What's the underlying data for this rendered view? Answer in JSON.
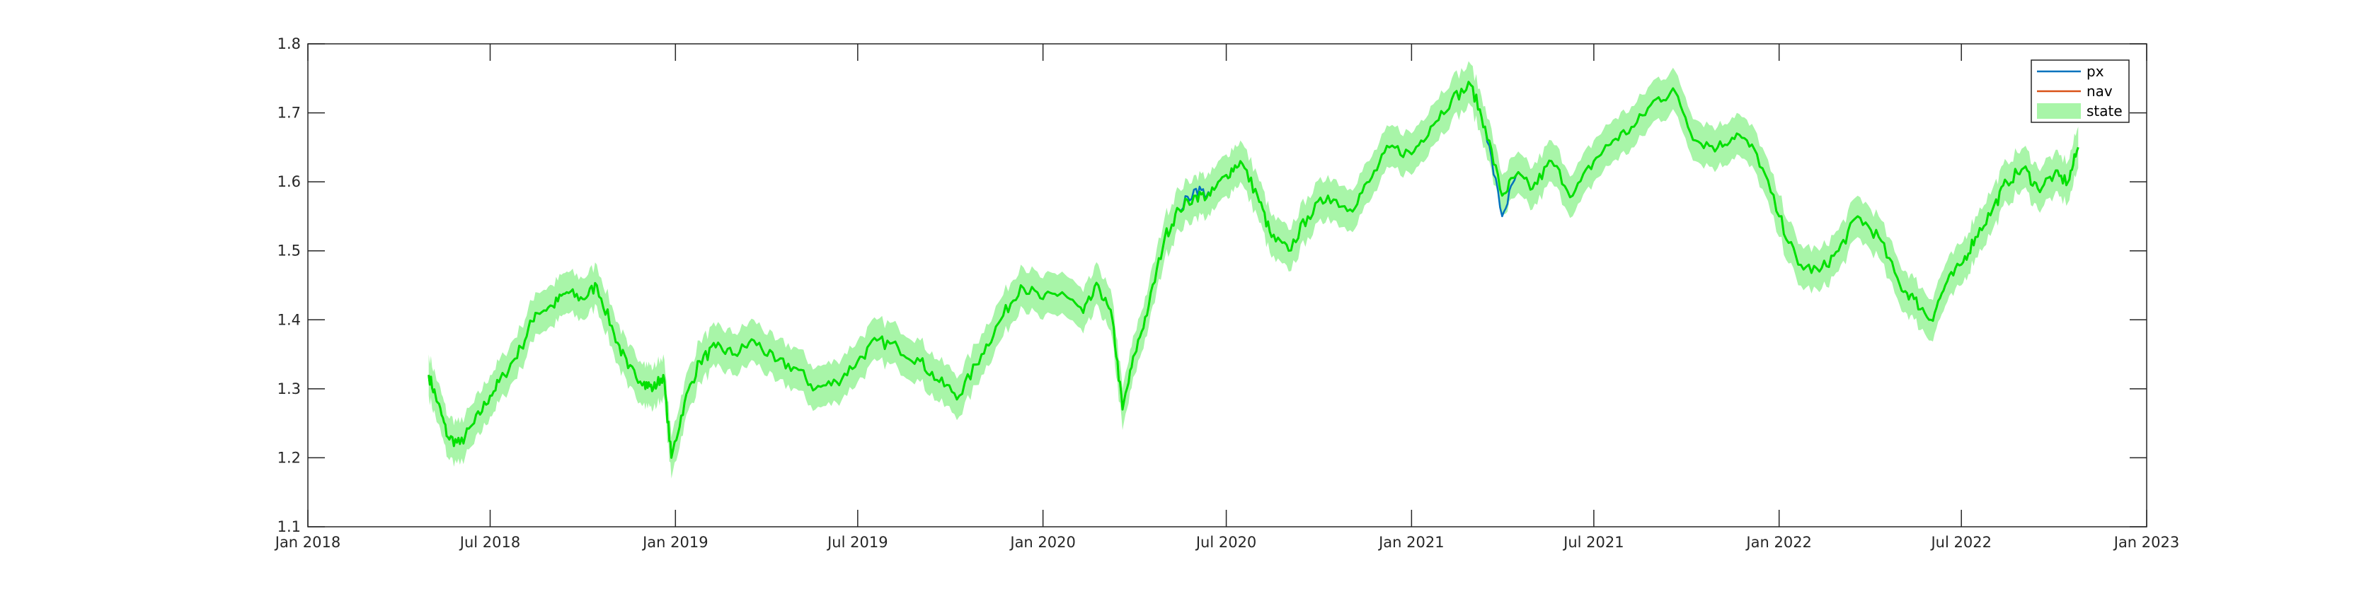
{
  "chart_data": {
    "type": "line",
    "title": "",
    "xlabel": "",
    "ylabel": "",
    "xlim": [
      "2018-01-01",
      "2023-01-01"
    ],
    "ylim": [
      1.1,
      1.8
    ],
    "x_ticks": [
      {
        "date": "2018-01-01",
        "label": "Jan 2018"
      },
      {
        "date": "2018-07-01",
        "label": "Jul 2018"
      },
      {
        "date": "2019-01-01",
        "label": "Jan 2019"
      },
      {
        "date": "2019-07-01",
        "label": "Jul 2019"
      },
      {
        "date": "2020-01-01",
        "label": "Jan 2020"
      },
      {
        "date": "2020-07-01",
        "label": "Jul 2020"
      },
      {
        "date": "2021-01-01",
        "label": "Jan 2021"
      },
      {
        "date": "2021-07-01",
        "label": "Jul 2021"
      },
      {
        "date": "2022-01-01",
        "label": "Jan 2022"
      },
      {
        "date": "2022-07-01",
        "label": "Jul 2022"
      },
      {
        "date": "2023-01-01",
        "label": "Jan 2023"
      }
    ],
    "y_ticks": [
      {
        "value": 1.1,
        "label": "1.1"
      },
      {
        "value": 1.2,
        "label": "1.2"
      },
      {
        "value": 1.3,
        "label": "1.3"
      },
      {
        "value": 1.4,
        "label": "1.4"
      },
      {
        "value": 1.5,
        "label": "1.5"
      },
      {
        "value": 1.6,
        "label": "1.6"
      },
      {
        "value": 1.7,
        "label": "1.7"
      },
      {
        "value": 1.8,
        "label": "1.8"
      }
    ],
    "grid": false,
    "legend_position": "top-right",
    "band_halfwidth": 0.03,
    "x": [
      "2018-05-01",
      "2018-05-10",
      "2018-05-20",
      "2018-06-01",
      "2018-06-15",
      "2018-07-01",
      "2018-07-15",
      "2018-08-01",
      "2018-08-15",
      "2018-09-01",
      "2018-09-15",
      "2018-10-01",
      "2018-10-15",
      "2018-11-01",
      "2018-11-15",
      "2018-12-01",
      "2018-12-10",
      "2018-12-20",
      "2018-12-28",
      "2019-01-10",
      "2019-01-25",
      "2019-02-10",
      "2019-03-01",
      "2019-03-20",
      "2019-04-10",
      "2019-05-01",
      "2019-05-20",
      "2019-06-10",
      "2019-07-01",
      "2019-07-20",
      "2019-08-10",
      "2019-09-01",
      "2019-09-20",
      "2019-10-10",
      "2019-11-01",
      "2019-11-20",
      "2019-12-10",
      "2020-01-01",
      "2020-01-20",
      "2020-02-10",
      "2020-02-25",
      "2020-03-10",
      "2020-03-20",
      "2020-04-01",
      "2020-04-15",
      "2020-05-01",
      "2020-05-15",
      "2020-06-01",
      "2020-06-15",
      "2020-07-01",
      "2020-07-15",
      "2020-08-01",
      "2020-08-15",
      "2020-09-01",
      "2020-09-20",
      "2020-10-10",
      "2020-11-01",
      "2020-11-20",
      "2020-12-10",
      "2021-01-01",
      "2021-01-20",
      "2021-02-10",
      "2021-03-01",
      "2021-03-15",
      "2021-04-01",
      "2021-04-15",
      "2021-05-01",
      "2021-05-20",
      "2021-06-10",
      "2021-07-01",
      "2021-07-20",
      "2021-08-10",
      "2021-09-01",
      "2021-09-20",
      "2021-10-10",
      "2021-11-01",
      "2021-11-20",
      "2021-12-10",
      "2022-01-01",
      "2022-01-20",
      "2022-02-10",
      "2022-03-01",
      "2022-03-20",
      "2022-04-10",
      "2022-05-01",
      "2022-05-15",
      "2022-06-01",
      "2022-06-15",
      "2022-07-01",
      "2022-07-15",
      "2022-08-01",
      "2022-08-15",
      "2022-09-01",
      "2022-09-15",
      "2022-10-01",
      "2022-10-15",
      "2022-10-25"
    ],
    "series": [
      {
        "name": "px",
        "color": "#0072BD",
        "values": [
          1.32,
          1.28,
          1.23,
          1.22,
          1.25,
          1.29,
          1.32,
          1.36,
          1.41,
          1.42,
          1.44,
          1.43,
          1.45,
          1.38,
          1.33,
          1.31,
          1.3,
          1.32,
          1.2,
          1.28,
          1.34,
          1.36,
          1.35,
          1.37,
          1.34,
          1.33,
          1.3,
          1.31,
          1.34,
          1.37,
          1.36,
          1.34,
          1.31,
          1.29,
          1.35,
          1.4,
          1.45,
          1.43,
          1.44,
          1.41,
          1.45,
          1.4,
          1.27,
          1.35,
          1.42,
          1.52,
          1.56,
          1.59,
          1.58,
          1.61,
          1.63,
          1.58,
          1.52,
          1.5,
          1.55,
          1.58,
          1.56,
          1.6,
          1.65,
          1.64,
          1.68,
          1.72,
          1.74,
          1.68,
          1.55,
          1.61,
          1.59,
          1.63,
          1.58,
          1.63,
          1.66,
          1.68,
          1.72,
          1.73,
          1.66,
          1.65,
          1.67,
          1.64,
          1.55,
          1.48,
          1.47,
          1.5,
          1.55,
          1.52,
          1.45,
          1.43,
          1.4,
          1.45,
          1.48,
          1.52,
          1.56,
          1.6,
          1.62,
          1.59,
          1.61,
          1.6,
          1.65
        ]
      },
      {
        "name": "nav",
        "color": "#D95319",
        "values": [
          1.32,
          1.28,
          1.23,
          1.22,
          1.25,
          1.29,
          1.32,
          1.36,
          1.41,
          1.42,
          1.44,
          1.43,
          1.45,
          1.38,
          1.33,
          1.31,
          1.3,
          1.32,
          1.2,
          1.28,
          1.34,
          1.36,
          1.35,
          1.37,
          1.34,
          1.33,
          1.3,
          1.31,
          1.34,
          1.37,
          1.36,
          1.34,
          1.31,
          1.29,
          1.35,
          1.4,
          1.45,
          1.43,
          1.44,
          1.41,
          1.45,
          1.4,
          1.27,
          1.35,
          1.42,
          1.52,
          1.56,
          1.58,
          1.58,
          1.61,
          1.63,
          1.58,
          1.52,
          1.5,
          1.55,
          1.58,
          1.56,
          1.6,
          1.65,
          1.64,
          1.68,
          1.72,
          1.74,
          1.68,
          1.58,
          1.61,
          1.59,
          1.63,
          1.58,
          1.63,
          1.66,
          1.68,
          1.72,
          1.73,
          1.66,
          1.65,
          1.67,
          1.64,
          1.55,
          1.48,
          1.47,
          1.5,
          1.55,
          1.52,
          1.45,
          1.43,
          1.4,
          1.45,
          1.48,
          1.52,
          1.56,
          1.6,
          1.62,
          1.59,
          1.61,
          1.6,
          1.65
        ]
      },
      {
        "name": "state",
        "color": "#00E000",
        "band_color": "#A8F5A8",
        "values": [
          1.32,
          1.28,
          1.23,
          1.22,
          1.25,
          1.29,
          1.32,
          1.36,
          1.41,
          1.42,
          1.44,
          1.43,
          1.45,
          1.38,
          1.33,
          1.31,
          1.3,
          1.32,
          1.2,
          1.28,
          1.34,
          1.36,
          1.35,
          1.37,
          1.34,
          1.33,
          1.3,
          1.31,
          1.34,
          1.37,
          1.36,
          1.34,
          1.31,
          1.29,
          1.35,
          1.4,
          1.45,
          1.43,
          1.44,
          1.41,
          1.45,
          1.4,
          1.27,
          1.35,
          1.42,
          1.52,
          1.56,
          1.58,
          1.58,
          1.61,
          1.63,
          1.58,
          1.52,
          1.5,
          1.55,
          1.58,
          1.56,
          1.6,
          1.65,
          1.64,
          1.68,
          1.72,
          1.74,
          1.68,
          1.58,
          1.61,
          1.59,
          1.63,
          1.58,
          1.63,
          1.66,
          1.68,
          1.72,
          1.73,
          1.66,
          1.65,
          1.67,
          1.64,
          1.55,
          1.48,
          1.47,
          1.5,
          1.55,
          1.52,
          1.45,
          1.43,
          1.4,
          1.45,
          1.48,
          1.52,
          1.56,
          1.6,
          1.62,
          1.59,
          1.61,
          1.6,
          1.65
        ]
      }
    ],
    "legend": [
      "px",
      "nav",
      "state"
    ]
  }
}
